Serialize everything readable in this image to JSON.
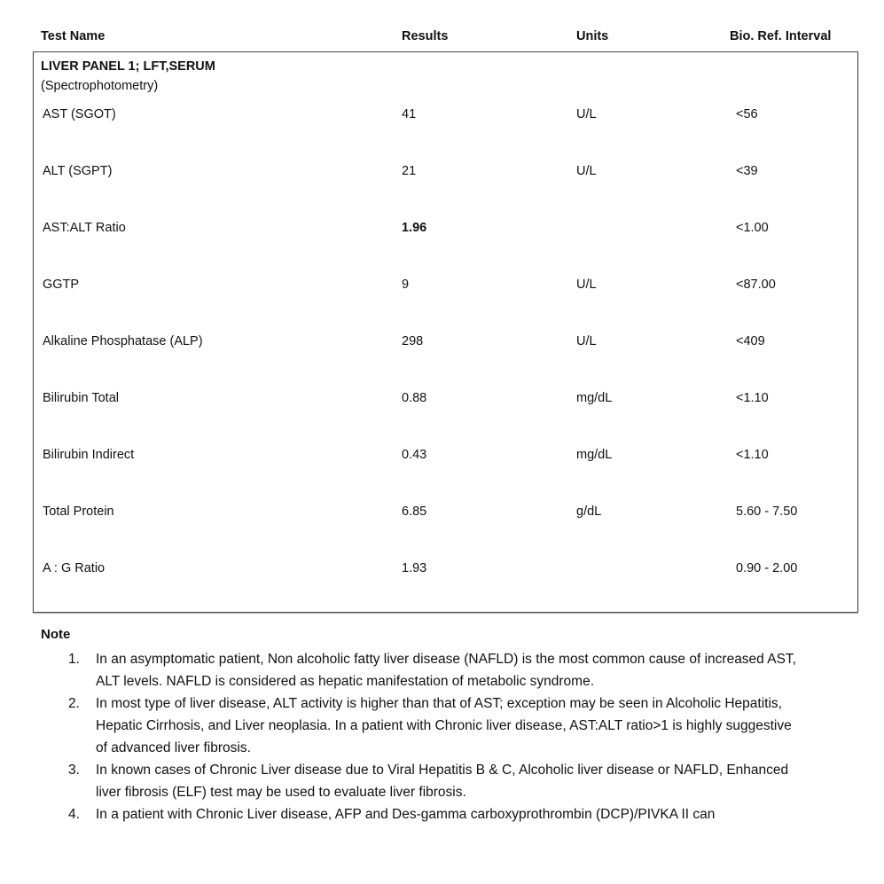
{
  "header": {
    "test_name": "Test Name",
    "results": "Results",
    "units": "Units",
    "ref": "Bio. Ref. Interval"
  },
  "panel": {
    "title": "LIVER PANEL 1; LFT,SERUM",
    "method": "(Spectrophotometry)"
  },
  "rows": [
    {
      "name": "AST (SGOT)",
      "result": "41",
      "unit": "U/L",
      "ref": "<56",
      "flag": false
    },
    {
      "name": "ALT (SGPT)",
      "result": "21",
      "unit": "U/L",
      "ref": "<39",
      "flag": false
    },
    {
      "name": "AST:ALT Ratio",
      "result": "1.96",
      "unit": "",
      "ref": "<1.00",
      "flag": true
    },
    {
      "name": "GGTP",
      "result": "9",
      "unit": "U/L",
      "ref": "<87.00",
      "flag": false
    },
    {
      "name": "Alkaline Phosphatase (ALP)",
      "result": "298",
      "unit": "U/L",
      "ref": "<409",
      "flag": false
    },
    {
      "name": "Bilirubin  Total",
      "result": "0.88",
      "unit": "mg/dL",
      "ref": "<1.10",
      "flag": false
    },
    {
      "name": "Bilirubin  Indirect",
      "result": "0.43",
      "unit": "mg/dL",
      "ref": "<1.10",
      "flag": false
    },
    {
      "name": "Total Protein",
      "result": "6.85",
      "unit": "g/dL",
      "ref": "5.60 - 7.50",
      "flag": false
    },
    {
      "name": "A : G Ratio",
      "result": "1.93",
      "unit": "",
      "ref": "0.90 - 2.00",
      "flag": false
    }
  ],
  "note": {
    "title": "Note",
    "items": [
      {
        "num": "1.",
        "text": "In an asymptomatic patient, Non alcoholic fatty liver disease (NAFLD) is the most common cause of increased AST, ALT levels. NAFLD is considered as hepatic manifestation of metabolic syndrome."
      },
      {
        "num": "2.",
        "text": "In most type of liver disease, ALT activity is higher than that of AST; exception may be seen in Alcoholic Hepatitis, Hepatic Cirrhosis, and Liver neoplasia. In a patient with Chronic liver disease, AST:ALT ratio>1 is highly suggestive of advanced liver fibrosis."
      },
      {
        "num": "3.",
        "text": "In known cases of Chronic Liver disease due to Viral Hepatitis B & C, Alcoholic liver disease or NAFLD, Enhanced liver fibrosis (ELF) test may be used  to evaluate liver fibrosis."
      },
      {
        "num": "4.",
        "text": "In a patient with Chronic Liver disease,  AFP and Des-gamma carboxyprothrombin (DCP)/PIVKA II can"
      }
    ]
  }
}
